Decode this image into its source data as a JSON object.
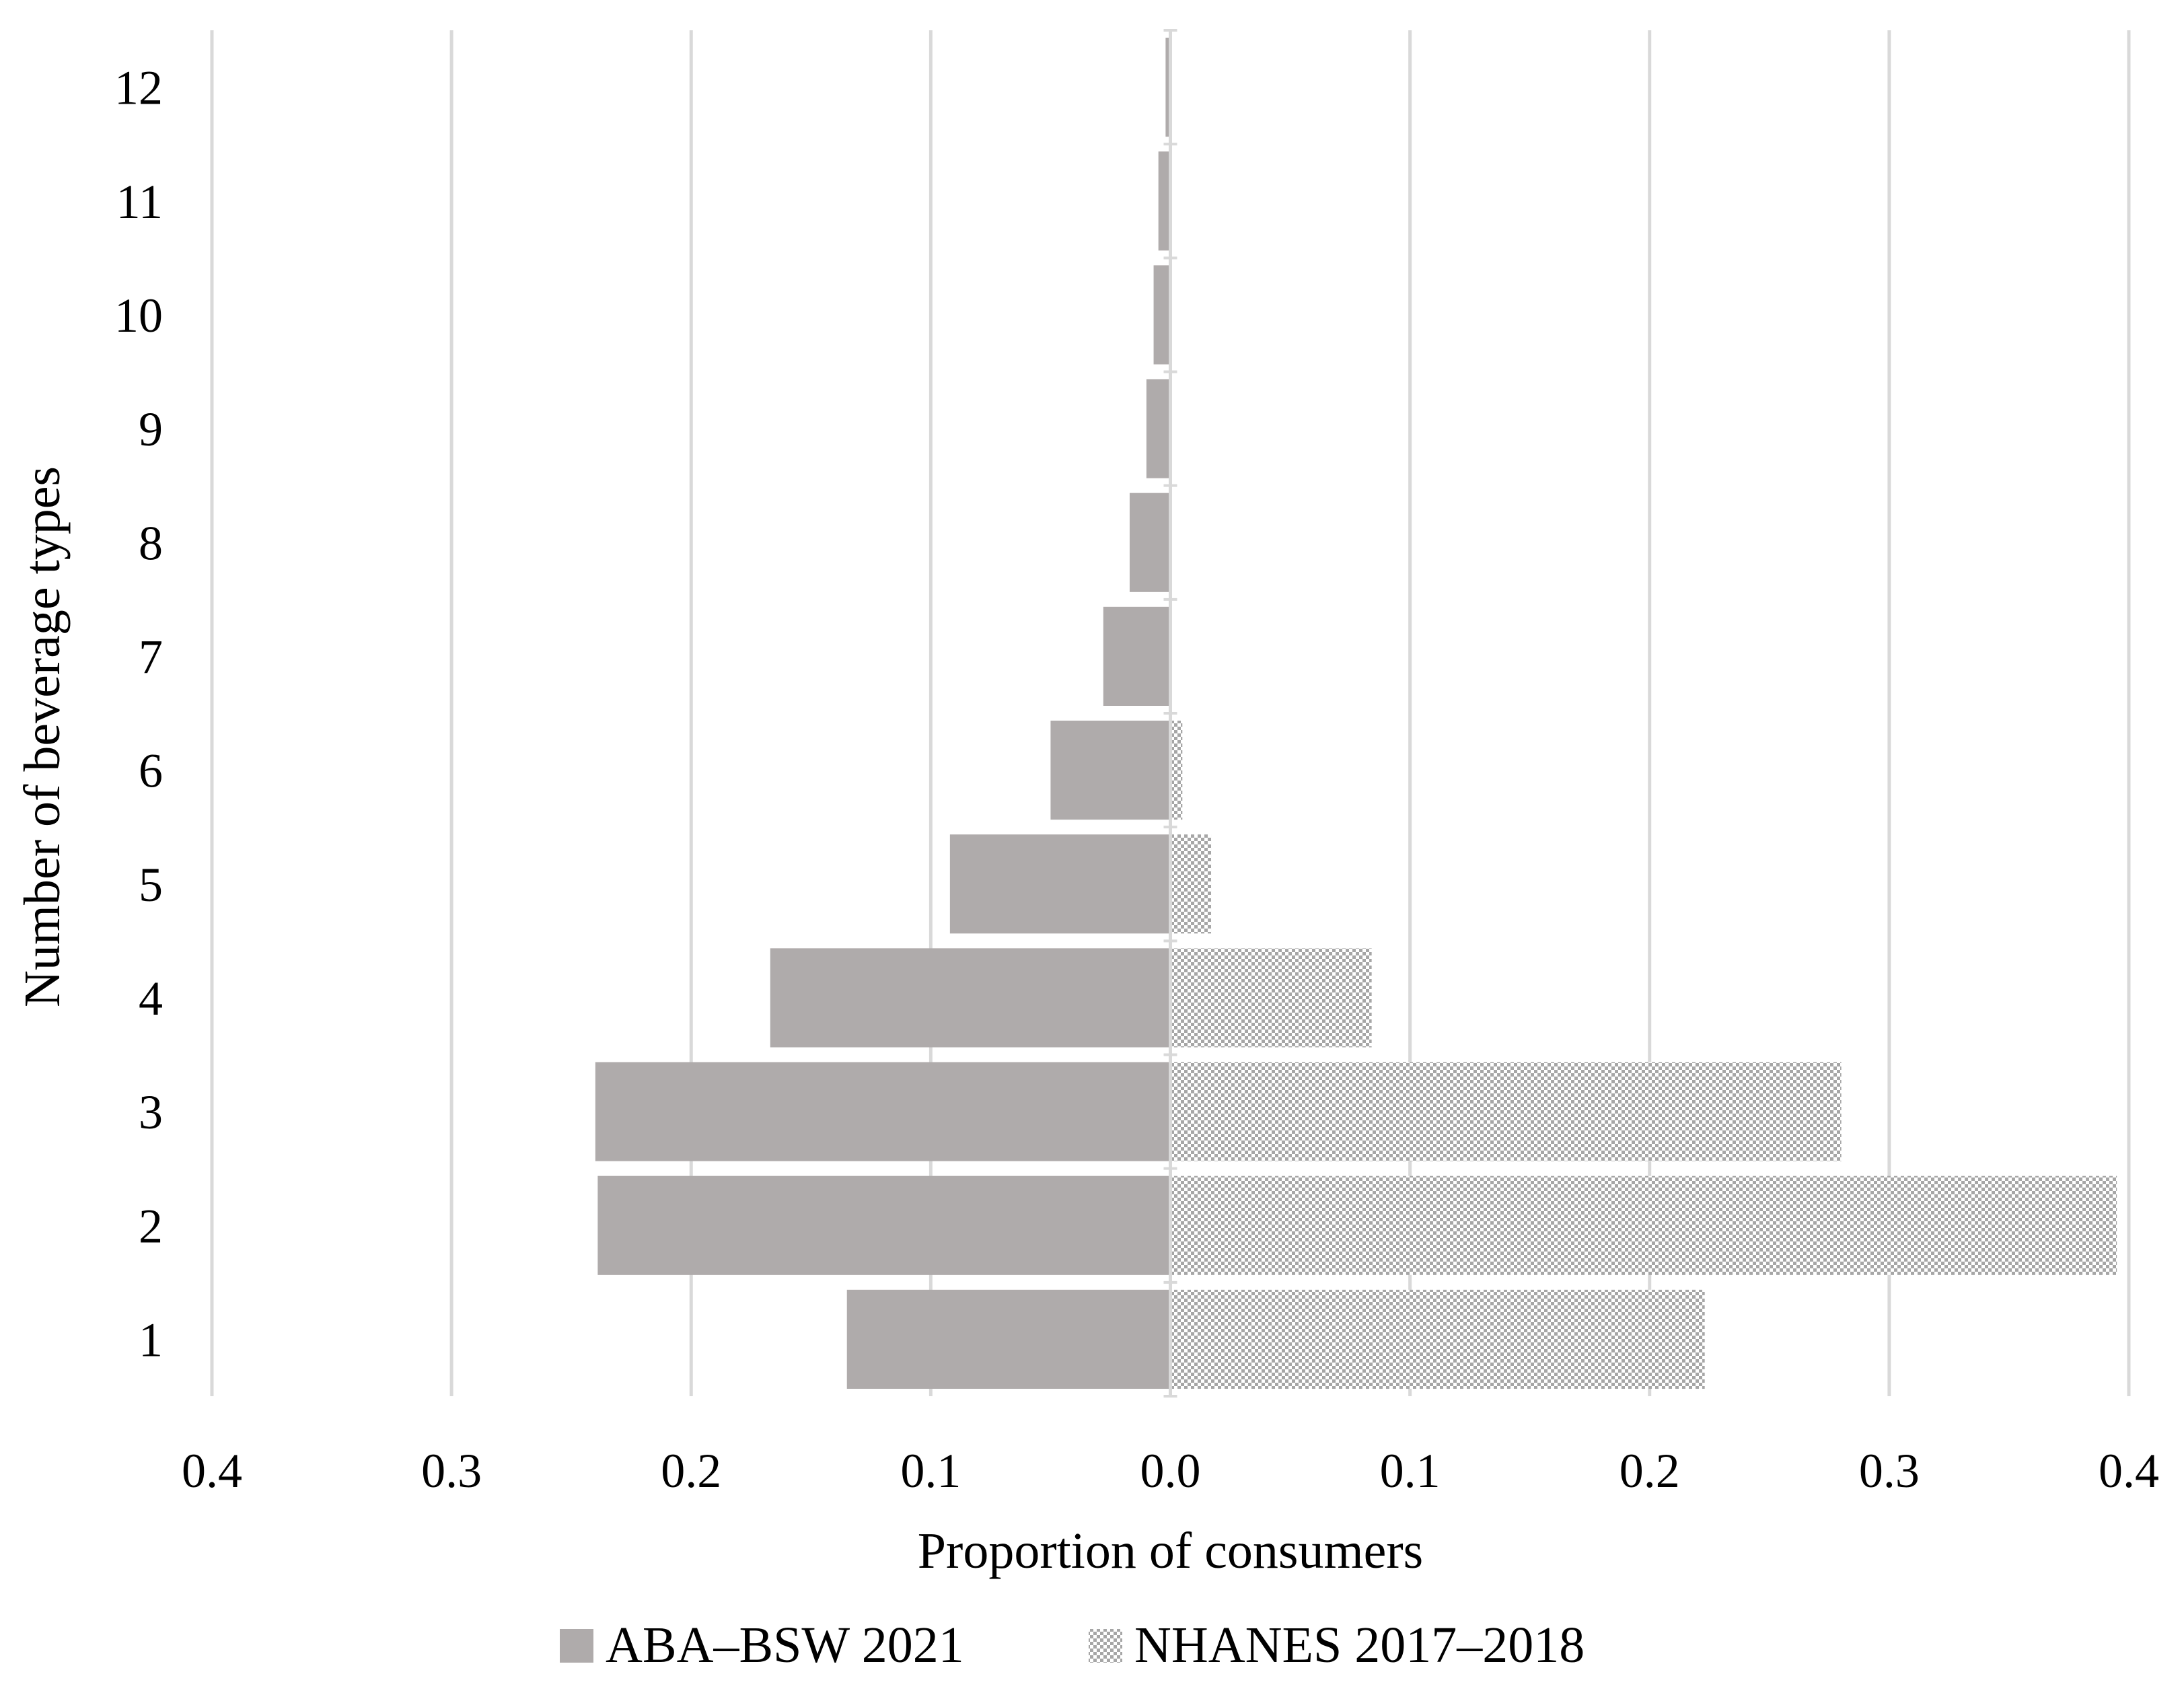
{
  "chart_data": {
    "type": "bar",
    "orientation": "horizontal",
    "layout": "diverging",
    "title": "",
    "categories": [
      "1",
      "2",
      "3",
      "4",
      "5",
      "6",
      "7",
      "8",
      "9",
      "10",
      "11",
      "12"
    ],
    "series": [
      {
        "name": "ABA–BSW 2021",
        "side": "left",
        "color": "#afabab",
        "pattern": "solid",
        "values": [
          0.135,
          0.239,
          0.24,
          0.167,
          0.092,
          0.05,
          0.028,
          0.017,
          0.01,
          0.007,
          0.005,
          0.002
        ]
      },
      {
        "name": "NHANES 2017–2018",
        "side": "right",
        "color": "#bfbfbf",
        "pattern": "dotted",
        "values": [
          0.223,
          0.395,
          0.28,
          0.084,
          0.017,
          0.005,
          0,
          0,
          0,
          0,
          0,
          0
        ]
      }
    ],
    "xlabel": "Proportion of consumers",
    "ylabel": "Number of beverage types",
    "xlim": [
      -0.4,
      0.4
    ],
    "xticks": [
      -0.4,
      -0.3,
      -0.2,
      -0.1,
      0.0,
      0.1,
      0.2,
      0.3,
      0.4
    ],
    "xtick_labels": [
      "0.4",
      "0.3",
      "0.2",
      "0.1",
      "0.0",
      "0.1",
      "0.2",
      "0.3",
      "0.4"
    ],
    "grid": "vertical",
    "grid_color": "#d9d9d9",
    "legend_position": "bottom"
  }
}
